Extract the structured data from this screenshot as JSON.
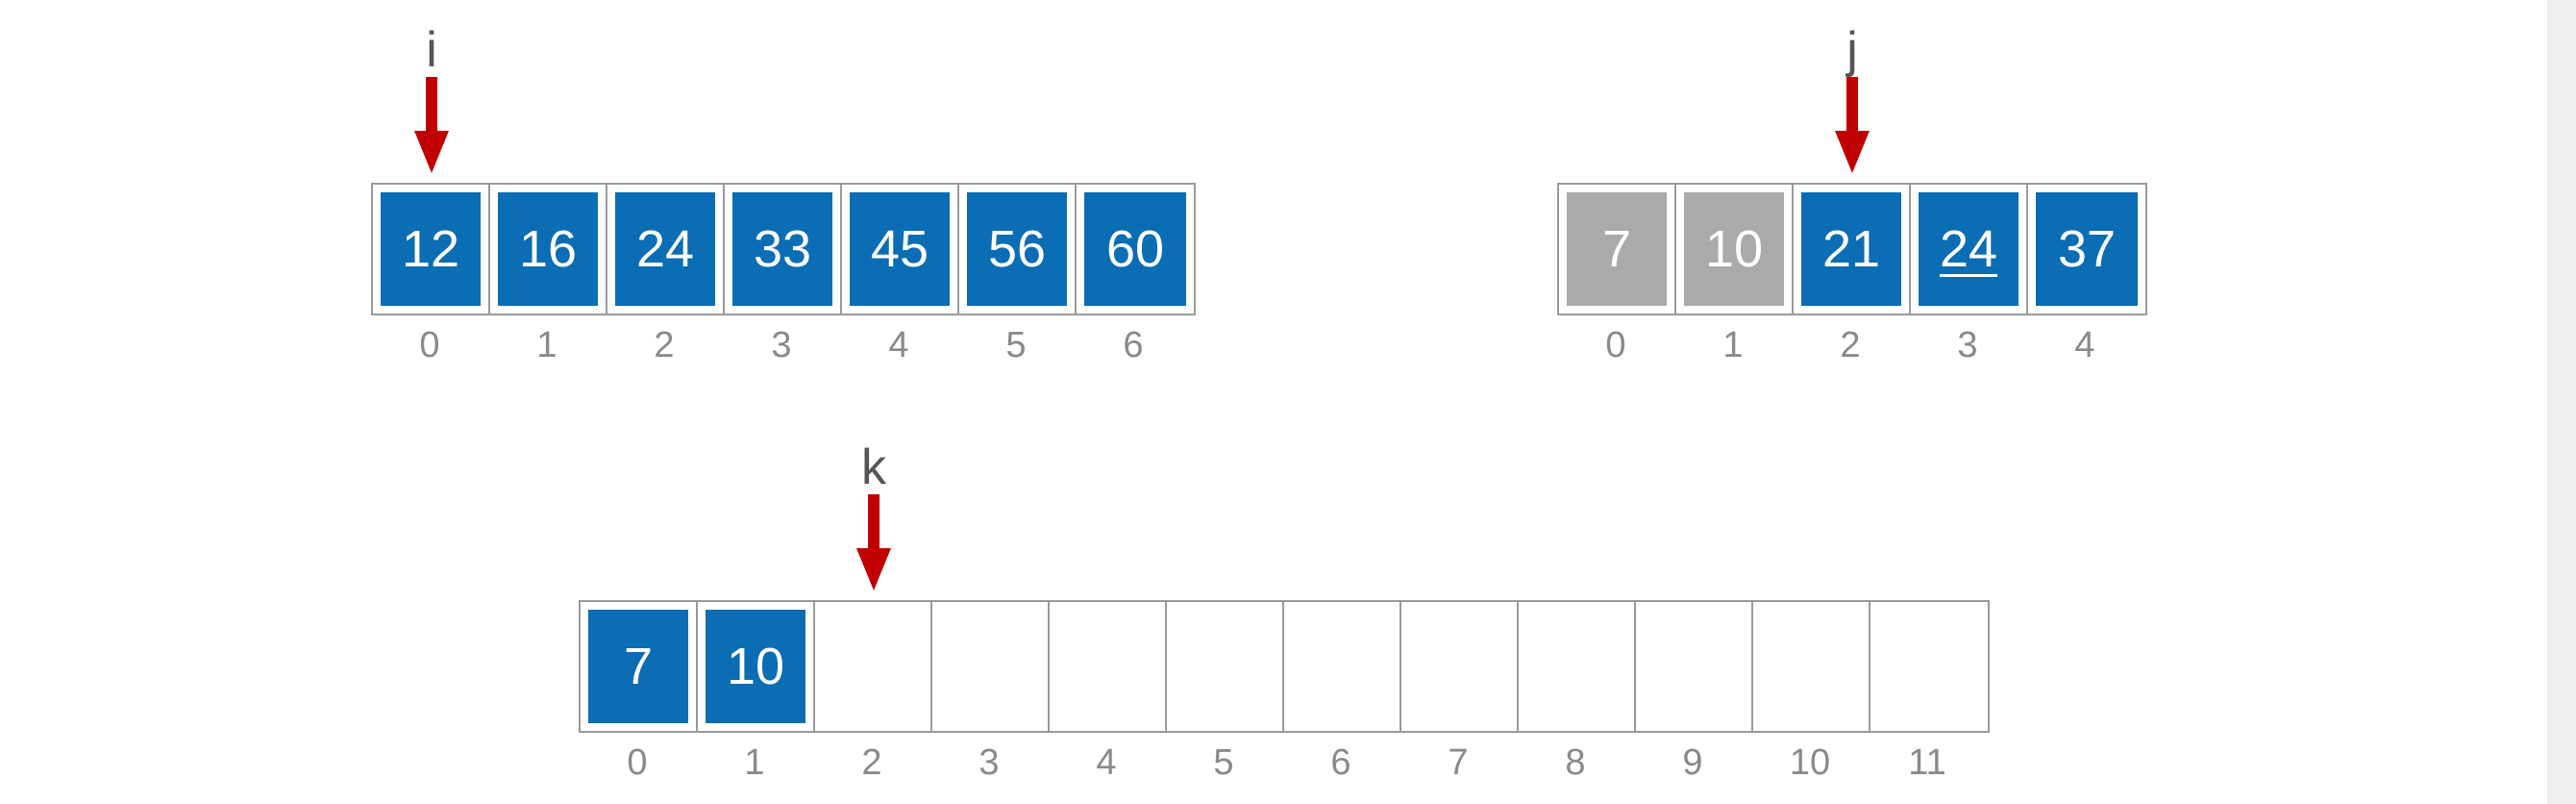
{
  "arrays": {
    "a": {
      "cells": [
        {
          "value": "12",
          "state": "blue"
        },
        {
          "value": "16",
          "state": "blue"
        },
        {
          "value": "24",
          "state": "blue"
        },
        {
          "value": "33",
          "state": "blue"
        },
        {
          "value": "45",
          "state": "blue"
        },
        {
          "value": "56",
          "state": "blue"
        },
        {
          "value": "60",
          "state": "blue"
        }
      ],
      "indices": [
        "0",
        "1",
        "2",
        "3",
        "4",
        "5",
        "6"
      ]
    },
    "b": {
      "cells": [
        {
          "value": "7",
          "state": "gray"
        },
        {
          "value": "10",
          "state": "gray"
        },
        {
          "value": "21",
          "state": "blue"
        },
        {
          "value": "24",
          "state": "blue",
          "underlined": true
        },
        {
          "value": "37",
          "state": "blue"
        }
      ],
      "indices": [
        "0",
        "1",
        "2",
        "3",
        "4"
      ]
    },
    "c": {
      "cells": [
        {
          "value": "7",
          "state": "blue"
        },
        {
          "value": "10",
          "state": "blue"
        },
        {
          "value": "",
          "state": "empty"
        },
        {
          "value": "",
          "state": "empty"
        },
        {
          "value": "",
          "state": "empty"
        },
        {
          "value": "",
          "state": "empty"
        },
        {
          "value": "",
          "state": "empty"
        },
        {
          "value": "",
          "state": "empty"
        },
        {
          "value": "",
          "state": "empty"
        },
        {
          "value": "",
          "state": "empty"
        },
        {
          "value": "",
          "state": "empty"
        },
        {
          "value": "",
          "state": "empty"
        }
      ],
      "indices": [
        "0",
        "1",
        "2",
        "3",
        "4",
        "5",
        "6",
        "7",
        "8",
        "9",
        "10",
        "11"
      ]
    }
  },
  "pointers": {
    "i": {
      "label": "i",
      "array": "a",
      "index": 0
    },
    "j": {
      "label": "j",
      "array": "b",
      "index": 2
    },
    "k": {
      "label": "k",
      "array": "c",
      "index": 2
    }
  },
  "colors": {
    "filled": "#0b6db4",
    "consumed": "#aaaaaa",
    "arrow": "#c00000",
    "index_text": "#8a8a8a",
    "border": "#9a9a9a"
  }
}
